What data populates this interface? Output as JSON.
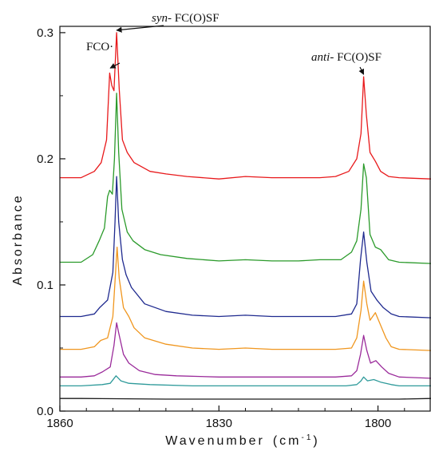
{
  "chart_data": {
    "type": "line",
    "xlabel": "Wavenumber",
    "xlabel_unit_base": "(cm",
    "xlabel_unit_sup": "-1",
    "xlabel_unit_close": ")",
    "ylabel": "Absorbance",
    "xlim": [
      1860,
      1790
    ],
    "ylim": [
      0.0,
      0.305
    ],
    "xticks": [
      1860,
      1830,
      1800
    ],
    "xtick_labels": [
      "1860",
      "1830",
      "1800"
    ],
    "yticks": [
      0.0,
      0.1,
      0.2,
      0.3
    ],
    "ytick_labels": [
      "0.0",
      "0.1",
      "0.2",
      "0.3"
    ],
    "grid": false,
    "annotations": [
      {
        "label": "FCO·",
        "italic_prefix": "",
        "points_to_x": 1850.5,
        "points_to_y": 0.27
      },
      {
        "label": " FC(O)SF",
        "italic_prefix": "syn-",
        "points_to_x": 1849.3,
        "points_to_y": 0.3
      },
      {
        "label": " FC(O)SF",
        "italic_prefix": "anti-",
        "points_to_x": 1802.7,
        "points_to_y": 0.265
      }
    ],
    "series": [
      {
        "color": "#e8191b",
        "baseline": 0.185,
        "baseline_end": 0.184,
        "values": [
          [
            1856,
            0.185
          ],
          [
            1853.5,
            0.19
          ],
          [
            1852.2,
            0.197
          ],
          [
            1851.2,
            0.215
          ],
          [
            1850.6,
            0.268
          ],
          [
            1850.2,
            0.258
          ],
          [
            1849.8,
            0.254
          ],
          [
            1849.3,
            0.3
          ],
          [
            1848.8,
            0.255
          ],
          [
            1848.2,
            0.215
          ],
          [
            1847.3,
            0.205
          ],
          [
            1846,
            0.197
          ],
          [
            1843,
            0.19
          ],
          [
            1840,
            0.188
          ],
          [
            1836,
            0.186
          ],
          [
            1830,
            0.184
          ],
          [
            1825,
            0.186
          ],
          [
            1820,
            0.185
          ],
          [
            1815,
            0.185
          ],
          [
            1811,
            0.185
          ],
          [
            1808,
            0.186
          ],
          [
            1805.5,
            0.19
          ],
          [
            1804,
            0.2
          ],
          [
            1803.2,
            0.22
          ],
          [
            1802.7,
            0.265
          ],
          [
            1802.2,
            0.235
          ],
          [
            1801.5,
            0.205
          ],
          [
            1800.5,
            0.198
          ],
          [
            1799.5,
            0.19
          ],
          [
            1798,
            0.186
          ],
          [
            1796,
            0.185
          ]
        ]
      },
      {
        "color": "#2a9a2a",
        "baseline": 0.118,
        "baseline_end": 0.117,
        "values": [
          [
            1856,
            0.118
          ],
          [
            1853.8,
            0.124
          ],
          [
            1852.6,
            0.135
          ],
          [
            1851.6,
            0.145
          ],
          [
            1851,
            0.17
          ],
          [
            1850.6,
            0.175
          ],
          [
            1850.1,
            0.172
          ],
          [
            1849.7,
            0.2
          ],
          [
            1849.3,
            0.252
          ],
          [
            1848.9,
            0.205
          ],
          [
            1848.3,
            0.16
          ],
          [
            1847.3,
            0.142
          ],
          [
            1846.2,
            0.135
          ],
          [
            1844,
            0.128
          ],
          [
            1841,
            0.124
          ],
          [
            1836,
            0.121
          ],
          [
            1830,
            0.119
          ],
          [
            1825,
            0.12
          ],
          [
            1820,
            0.119
          ],
          [
            1815,
            0.119
          ],
          [
            1811,
            0.12
          ],
          [
            1807,
            0.12
          ],
          [
            1805,
            0.126
          ],
          [
            1804,
            0.135
          ],
          [
            1803.2,
            0.16
          ],
          [
            1802.7,
            0.196
          ],
          [
            1802.2,
            0.185
          ],
          [
            1801.5,
            0.14
          ],
          [
            1800.5,
            0.13
          ],
          [
            1799.5,
            0.128
          ],
          [
            1798,
            0.12
          ],
          [
            1796,
            0.118
          ]
        ]
      },
      {
        "color": "#1f2a8f",
        "baseline": 0.075,
        "baseline_end": 0.074,
        "values": [
          [
            1856,
            0.075
          ],
          [
            1853.5,
            0.077
          ],
          [
            1852.5,
            0.082
          ],
          [
            1851,
            0.088
          ],
          [
            1850,
            0.11
          ],
          [
            1849.6,
            0.15
          ],
          [
            1849.3,
            0.186
          ],
          [
            1848.9,
            0.15
          ],
          [
            1848.2,
            0.12
          ],
          [
            1847.5,
            0.108
          ],
          [
            1846.5,
            0.098
          ],
          [
            1844,
            0.085
          ],
          [
            1840,
            0.079
          ],
          [
            1835,
            0.076
          ],
          [
            1830,
            0.075
          ],
          [
            1825,
            0.076
          ],
          [
            1820,
            0.075
          ],
          [
            1815,
            0.075
          ],
          [
            1811,
            0.075
          ],
          [
            1808,
            0.075
          ],
          [
            1805,
            0.077
          ],
          [
            1804,
            0.085
          ],
          [
            1803.3,
            0.12
          ],
          [
            1802.7,
            0.142
          ],
          [
            1802.1,
            0.118
          ],
          [
            1801.3,
            0.095
          ],
          [
            1800.2,
            0.088
          ],
          [
            1799,
            0.082
          ],
          [
            1797.5,
            0.077
          ],
          [
            1796,
            0.075
          ]
        ]
      },
      {
        "color": "#f0961e",
        "baseline": 0.049,
        "baseline_end": 0.048,
        "values": [
          [
            1856,
            0.049
          ],
          [
            1853.5,
            0.051
          ],
          [
            1852.3,
            0.056
          ],
          [
            1851,
            0.058
          ],
          [
            1850,
            0.075
          ],
          [
            1849.5,
            0.11
          ],
          [
            1849.2,
            0.13
          ],
          [
            1848.8,
            0.105
          ],
          [
            1848,
            0.082
          ],
          [
            1847,
            0.075
          ],
          [
            1846,
            0.066
          ],
          [
            1844,
            0.058
          ],
          [
            1840,
            0.053
          ],
          [
            1835,
            0.05
          ],
          [
            1830,
            0.049
          ],
          [
            1825,
            0.05
          ],
          [
            1820,
            0.049
          ],
          [
            1815,
            0.049
          ],
          [
            1811,
            0.049
          ],
          [
            1808,
            0.049
          ],
          [
            1805,
            0.05
          ],
          [
            1804,
            0.058
          ],
          [
            1803.2,
            0.08
          ],
          [
            1802.7,
            0.103
          ],
          [
            1802.1,
            0.085
          ],
          [
            1801.5,
            0.072
          ],
          [
            1800.5,
            0.078
          ],
          [
            1799.5,
            0.068
          ],
          [
            1798.5,
            0.058
          ],
          [
            1797.5,
            0.051
          ],
          [
            1796,
            0.049
          ]
        ]
      },
      {
        "color": "#9a2a9a",
        "baseline": 0.027,
        "baseline_end": 0.026,
        "values": [
          [
            1856,
            0.027
          ],
          [
            1853.5,
            0.028
          ],
          [
            1852,
            0.031
          ],
          [
            1850.5,
            0.035
          ],
          [
            1849.8,
            0.052
          ],
          [
            1849.3,
            0.07
          ],
          [
            1848.9,
            0.062
          ],
          [
            1848,
            0.045
          ],
          [
            1847,
            0.038
          ],
          [
            1845,
            0.032
          ],
          [
            1842,
            0.029
          ],
          [
            1838,
            0.028
          ],
          [
            1830,
            0.027
          ],
          [
            1820,
            0.027
          ],
          [
            1811,
            0.027
          ],
          [
            1808,
            0.027
          ],
          [
            1805,
            0.028
          ],
          [
            1804,
            0.032
          ],
          [
            1803.3,
            0.045
          ],
          [
            1802.7,
            0.06
          ],
          [
            1802.1,
            0.048
          ],
          [
            1801.4,
            0.038
          ],
          [
            1800.4,
            0.04
          ],
          [
            1799.3,
            0.035
          ],
          [
            1798,
            0.03
          ],
          [
            1796,
            0.027
          ]
        ]
      },
      {
        "color": "#2e9a9a",
        "baseline": 0.02,
        "baseline_end": 0.02,
        "values": [
          [
            1856,
            0.02
          ],
          [
            1852,
            0.021
          ],
          [
            1850.5,
            0.022
          ],
          [
            1849.4,
            0.028
          ],
          [
            1848.5,
            0.024
          ],
          [
            1847,
            0.022
          ],
          [
            1843,
            0.021
          ],
          [
            1835,
            0.02
          ],
          [
            1820,
            0.02
          ],
          [
            1811,
            0.02
          ],
          [
            1806,
            0.02
          ],
          [
            1804,
            0.021
          ],
          [
            1803.2,
            0.024
          ],
          [
            1802.7,
            0.027
          ],
          [
            1802,
            0.024
          ],
          [
            1800.8,
            0.025
          ],
          [
            1799.5,
            0.023
          ],
          [
            1797.5,
            0.021
          ],
          [
            1796,
            0.02
          ]
        ]
      },
      {
        "color": "#1a1a1a",
        "baseline": 0.01,
        "baseline_end": 0.01,
        "values": [
          [
            1856,
            0.01
          ],
          [
            1840,
            0.0095
          ],
          [
            1830,
            0.0095
          ],
          [
            1820,
            0.0095
          ],
          [
            1811,
            0.0095
          ],
          [
            1800,
            0.0095
          ],
          [
            1796,
            0.0095
          ]
        ]
      }
    ]
  }
}
